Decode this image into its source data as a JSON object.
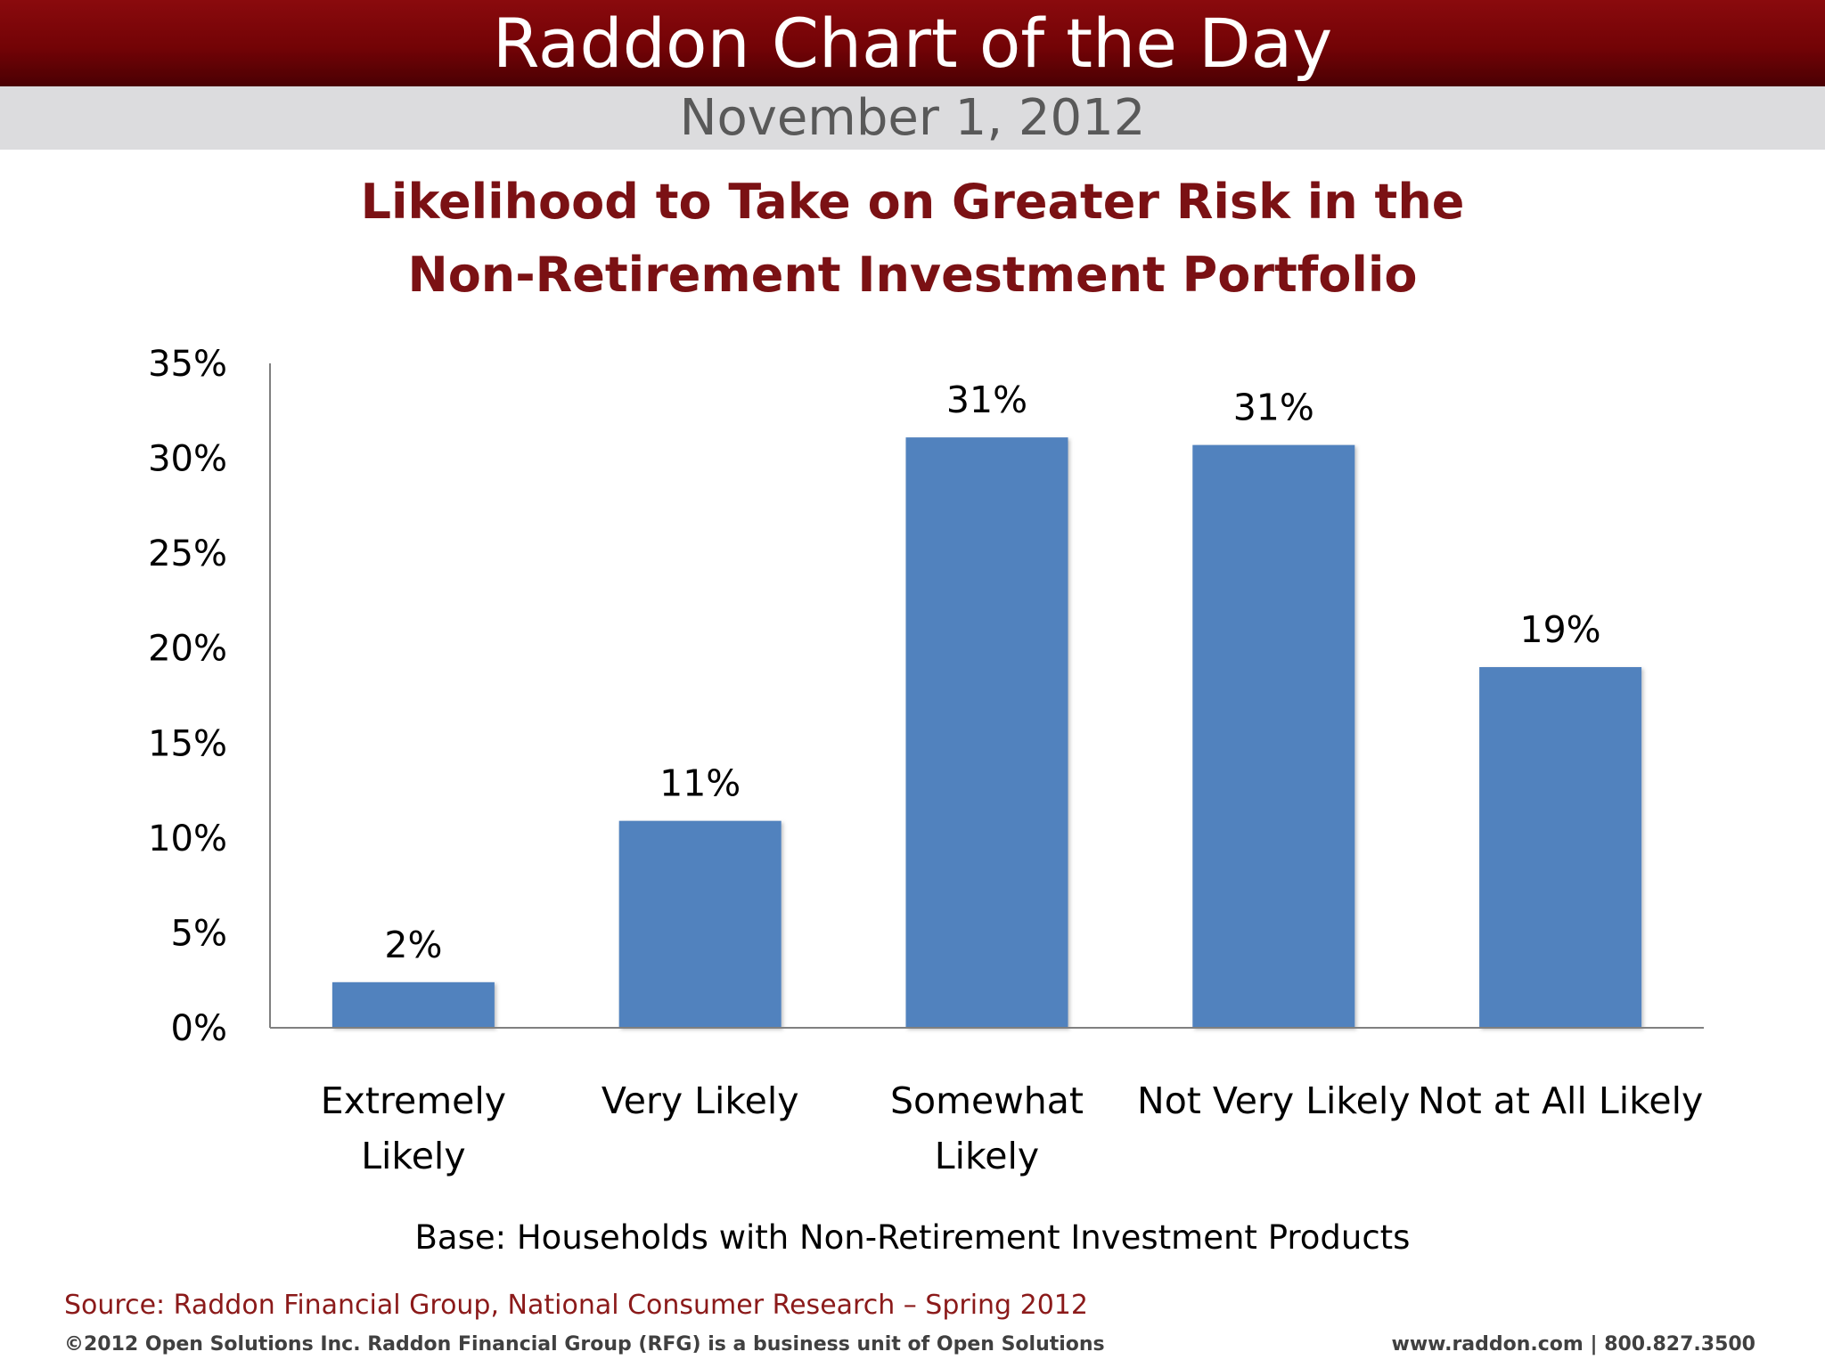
{
  "header": {
    "title": "Raddon Chart of the Day",
    "date": "November 1, 2012"
  },
  "chart_data": {
    "type": "bar",
    "title_lines": [
      "Likelihood to Take on Greater Risk in the",
      "Non-Retirement Investment Portfolio"
    ],
    "categories": [
      [
        "Extremely",
        "Likely"
      ],
      [
        "Very Likely"
      ],
      [
        "Somewhat",
        "Likely"
      ],
      [
        "Not Very Likely"
      ],
      [
        "Not at All Likely"
      ]
    ],
    "values": [
      2.4,
      10.9,
      31.1,
      30.7,
      19.0
    ],
    "data_labels": [
      "2%",
      "11%",
      "31%",
      "31%",
      "19%"
    ],
    "ylim": [
      0,
      35
    ],
    "yticks": [
      0,
      5,
      10,
      15,
      20,
      25,
      30,
      35
    ],
    "ytick_labels": [
      "0%",
      "5%",
      "10%",
      "15%",
      "20%",
      "25%",
      "30%",
      "35%"
    ],
    "xlabel": "",
    "ylabel": "",
    "grid": false,
    "legend": "none",
    "bar_color": "#5182be"
  },
  "footer": {
    "base": "Base: Households with Non-Retirement Investment Products",
    "source": "Source: Raddon Financial Group, National Consumer Research – Spring 2012",
    "copyright": "©2012 Open Solutions Inc.  Raddon Financial Group (RFG) is a business unit of Open Solutions",
    "contact": "www.raddon.com  |  800.827.3500"
  },
  "colors": {
    "banner": "#730306",
    "date_bar": "#dcdcde",
    "title": "#7b1114",
    "source": "#8b1a1a"
  }
}
